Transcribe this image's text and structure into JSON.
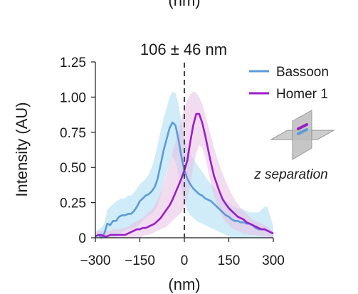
{
  "top_cut_label": "(nm)",
  "chart_data": {
    "type": "line",
    "annotation": "106 ± 46 nm",
    "xlabel": "(nm)",
    "ylabel": "Intensity (AU)",
    "xlim": [
      -300,
      300
    ],
    "ylim": [
      0,
      1.25
    ],
    "x_ticks": [
      -300,
      -150,
      0,
      150,
      300
    ],
    "x_tick_labels": [
      "−300",
      "−150",
      "0",
      "150",
      "300"
    ],
    "y_ticks": [
      0,
      0.25,
      0.5,
      0.75,
      1.0,
      1.25
    ],
    "y_tick_labels": [
      "0",
      "0.25",
      "0.50",
      "0.75",
      "1.00",
      "1.25"
    ],
    "vline_x": 0,
    "legend_position": "top-right",
    "inset_label": "z separation",
    "series": [
      {
        "name": "Bassoon",
        "color": "#5b9bd9",
        "band_color": "#a9dcf2",
        "x": [
          -300,
          -290,
          -280,
          -270,
          -260,
          -250,
          -240,
          -230,
          -220,
          -210,
          -200,
          -190,
          -180,
          -170,
          -160,
          -150,
          -140,
          -130,
          -120,
          -110,
          -100,
          -90,
          -80,
          -70,
          -60,
          -50,
          -40,
          -30,
          -20,
          -10,
          0,
          10,
          20,
          30,
          40,
          50,
          60,
          70,
          80,
          90,
          100,
          110,
          120,
          130,
          140,
          150,
          160,
          170,
          180,
          190,
          200,
          210,
          220,
          230,
          240,
          250,
          260,
          270,
          280,
          290,
          300
        ],
        "mean": [
          0.01,
          0.02,
          0.0,
          0.03,
          0.1,
          0.09,
          0.12,
          0.12,
          0.15,
          0.16,
          0.16,
          0.17,
          0.17,
          0.19,
          0.22,
          0.26,
          0.28,
          0.3,
          0.31,
          0.33,
          0.36,
          0.42,
          0.52,
          0.62,
          0.7,
          0.78,
          0.82,
          0.8,
          0.7,
          0.58,
          0.48,
          0.42,
          0.38,
          0.35,
          0.33,
          0.31,
          0.3,
          0.28,
          0.27,
          0.26,
          0.24,
          0.22,
          0.2,
          0.18,
          0.16,
          0.15,
          0.13,
          0.12,
          0.12,
          0.11,
          0.11,
          0.1,
          0.1,
          0.09,
          0.07,
          0.06,
          0.06,
          0.06,
          0.05,
          0.04,
          0.03
        ],
        "upper": [
          0.04,
          0.06,
          0.07,
          0.1,
          0.2,
          0.22,
          0.24,
          0.26,
          0.27,
          0.28,
          0.28,
          0.3,
          0.3,
          0.32,
          0.35,
          0.38,
          0.4,
          0.42,
          0.45,
          0.5,
          0.57,
          0.66,
          0.76,
          0.85,
          0.92,
          1.0,
          1.04,
          1.03,
          0.95,
          0.83,
          0.71,
          0.64,
          0.6,
          0.56,
          0.53,
          0.5,
          0.47,
          0.44,
          0.41,
          0.38,
          0.36,
          0.33,
          0.3,
          0.28,
          0.26,
          0.25,
          0.23,
          0.22,
          0.21,
          0.21,
          0.2,
          0.19,
          0.18,
          0.18,
          0.18,
          0.18,
          0.2,
          0.22,
          0.22,
          0.15,
          0.08
        ],
        "lower": [
          0.0,
          0.0,
          0.0,
          0.0,
          0.0,
          0.0,
          0.0,
          0.0,
          0.02,
          0.04,
          0.05,
          0.06,
          0.06,
          0.07,
          0.08,
          0.1,
          0.12,
          0.14,
          0.16,
          0.17,
          0.19,
          0.23,
          0.3,
          0.38,
          0.46,
          0.52,
          0.58,
          0.54,
          0.46,
          0.35,
          0.25,
          0.19,
          0.16,
          0.14,
          0.12,
          0.11,
          0.1,
          0.09,
          0.08,
          0.07,
          0.06,
          0.05,
          0.04,
          0.03,
          0.02,
          0.01,
          0.0,
          0.0,
          0.0,
          0.0,
          0.0,
          0.0,
          0.0,
          0.0,
          0.0,
          0.0,
          0.0,
          0.0,
          0.0,
          0.0,
          0.0
        ]
      },
      {
        "name": "Homer 1",
        "color": "#9b1dc9",
        "band_color": "#e7bfe1",
        "x": [
          -300,
          -290,
          -280,
          -270,
          -260,
          -250,
          -240,
          -230,
          -220,
          -210,
          -200,
          -190,
          -180,
          -170,
          -160,
          -150,
          -140,
          -130,
          -120,
          -110,
          -100,
          -90,
          -80,
          -70,
          -60,
          -50,
          -40,
          -30,
          -20,
          -10,
          0,
          10,
          20,
          30,
          40,
          50,
          60,
          70,
          80,
          90,
          100,
          110,
          120,
          130,
          140,
          150,
          160,
          170,
          180,
          190,
          200,
          210,
          220,
          230,
          240,
          250,
          260,
          270,
          280,
          290,
          300
        ],
        "mean": [
          0.01,
          0.02,
          0.02,
          0.01,
          0.01,
          0.02,
          0.02,
          0.02,
          0.02,
          0.02,
          0.02,
          0.03,
          0.04,
          0.05,
          0.06,
          0.06,
          0.07,
          0.07,
          0.08,
          0.09,
          0.1,
          0.12,
          0.14,
          0.17,
          0.2,
          0.23,
          0.27,
          0.32,
          0.37,
          0.42,
          0.48,
          0.55,
          0.68,
          0.8,
          0.88,
          0.88,
          0.82,
          0.73,
          0.63,
          0.53,
          0.44,
          0.38,
          0.32,
          0.27,
          0.24,
          0.21,
          0.19,
          0.17,
          0.15,
          0.14,
          0.13,
          0.11,
          0.1,
          0.09,
          0.08,
          0.07,
          0.06,
          0.06,
          0.05,
          0.04,
          0.03
        ],
        "upper": [
          0.04,
          0.05,
          0.05,
          0.05,
          0.05,
          0.05,
          0.06,
          0.06,
          0.06,
          0.07,
          0.07,
          0.08,
          0.09,
          0.11,
          0.12,
          0.13,
          0.14,
          0.16,
          0.18,
          0.2,
          0.23,
          0.27,
          0.32,
          0.38,
          0.45,
          0.52,
          0.6,
          0.68,
          0.76,
          0.84,
          0.92,
          0.98,
          1.02,
          1.04,
          1.03,
          1.0,
          0.95,
          0.88,
          0.8,
          0.72,
          0.64,
          0.57,
          0.51,
          0.45,
          0.4,
          0.35,
          0.31,
          0.27,
          0.24,
          0.21,
          0.19,
          0.17,
          0.15,
          0.13,
          0.12,
          0.11,
          0.1,
          0.09,
          0.08,
          0.06,
          0.05
        ],
        "lower": [
          0.0,
          0.0,
          0.0,
          0.0,
          0.0,
          0.0,
          0.0,
          0.0,
          0.0,
          0.0,
          0.0,
          0.0,
          0.0,
          0.0,
          0.0,
          0.0,
          0.01,
          0.02,
          0.02,
          0.03,
          0.04,
          0.05,
          0.06,
          0.07,
          0.08,
          0.1,
          0.12,
          0.14,
          0.16,
          0.18,
          0.22,
          0.28,
          0.38,
          0.5,
          0.6,
          0.66,
          0.64,
          0.58,
          0.48,
          0.38,
          0.3,
          0.24,
          0.18,
          0.14,
          0.11,
          0.09,
          0.07,
          0.06,
          0.05,
          0.04,
          0.03,
          0.03,
          0.02,
          0.02,
          0.02,
          0.01,
          0.01,
          0.01,
          0.01,
          0.0,
          0.0
        ]
      }
    ]
  }
}
